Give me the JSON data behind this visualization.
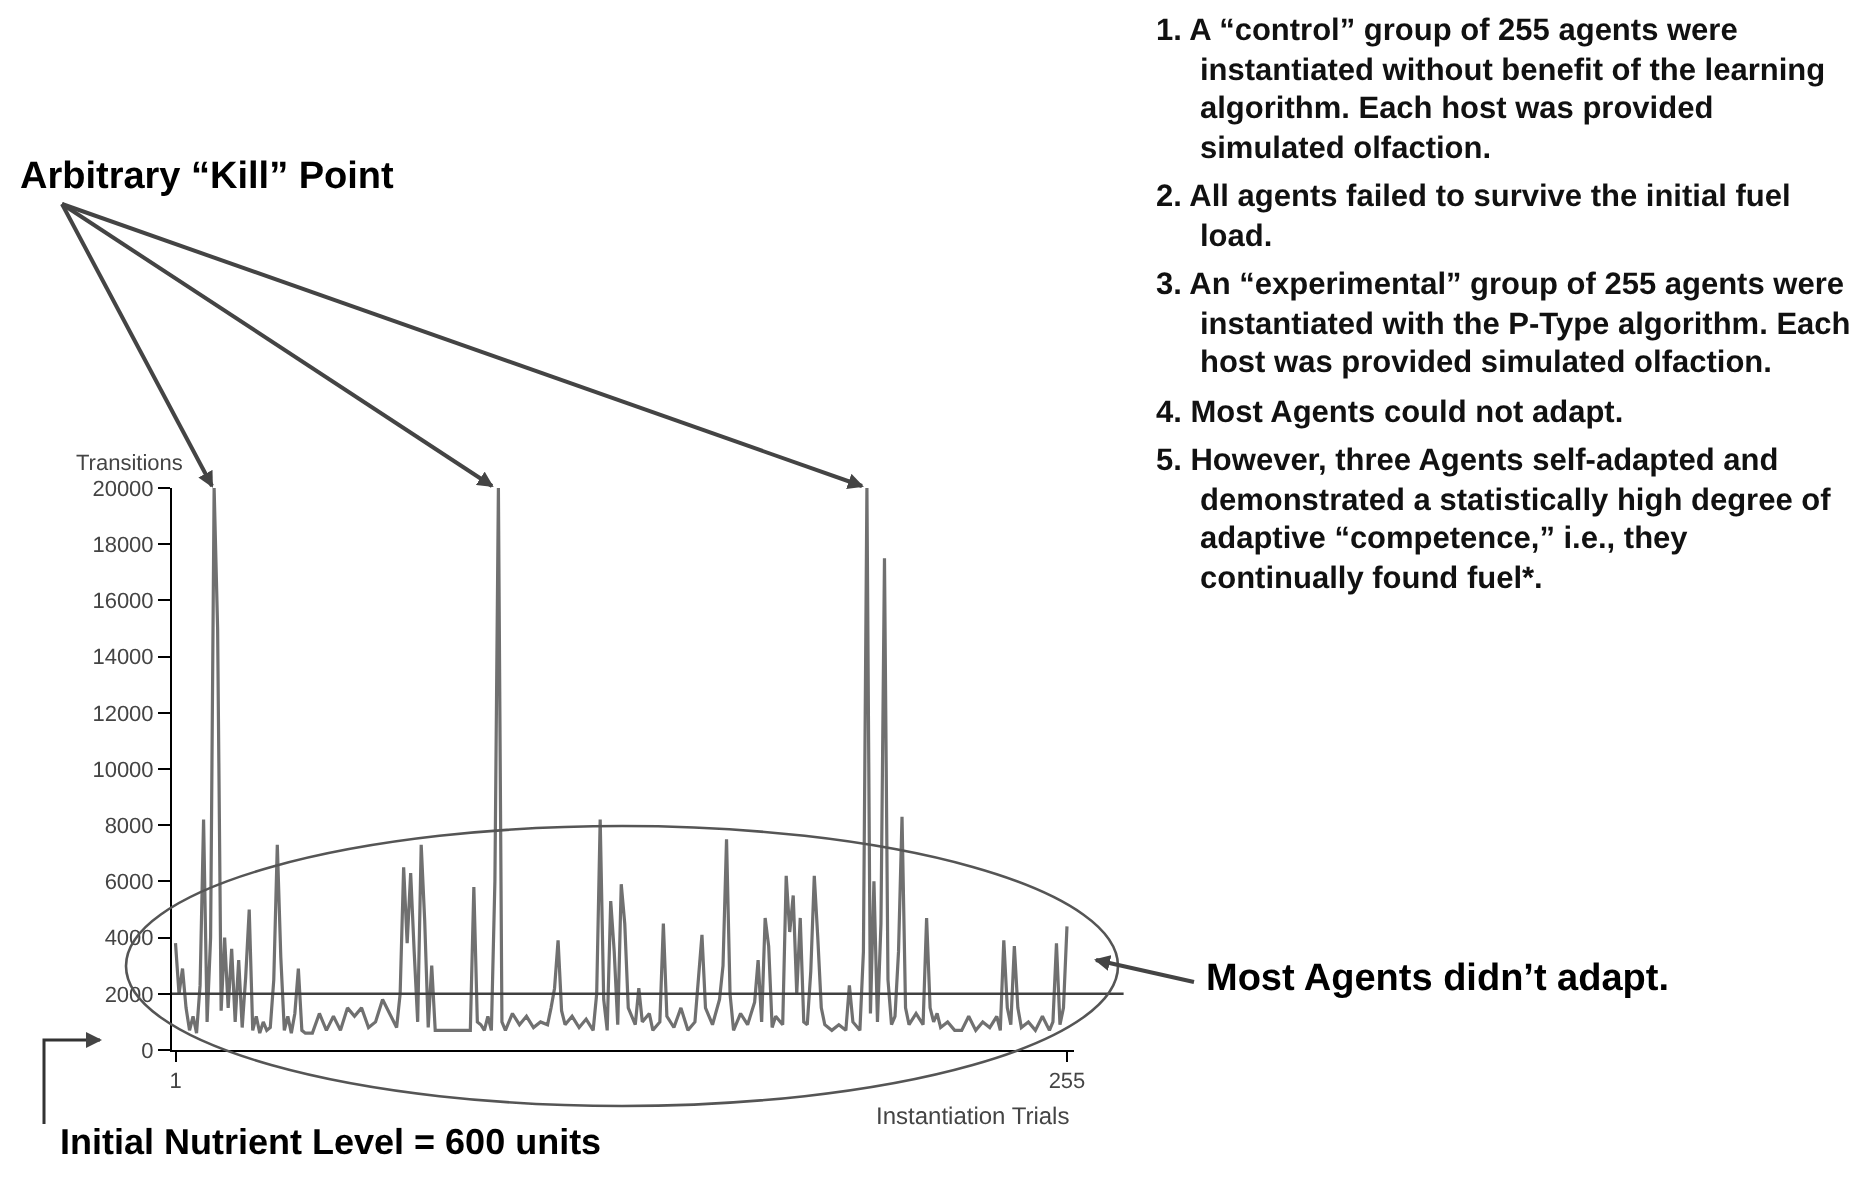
{
  "chart_data": {
    "type": "line",
    "ylabel": "Transitions",
    "xlabel": "Instantiation Trials",
    "annotations": [
      "Arbitrary “Kill” Point",
      "Most Agents didn’t adapt.",
      "Initial Nutrient Level = 600 units",
      "1. A “control” group of 255 agents were instantiated without benefit of the learning algorithm.  Each host was provided simulated olfaction.",
      "2. All agents failed to survive the initial fuel load.",
      "3. An “experimental” group of 255 agents were instantiated with the P-Type algorithm. Each host was provided simulated olfaction.",
      "4. Most Agents could not adapt.",
      "5. However, three Agents self-adapted and demonstrated a statistically high degree of adaptive “competence,” i.e., they continually found fuel*."
    ],
    "x": [
      1,
      2,
      3,
      4,
      5,
      6,
      7,
      8,
      9,
      10,
      11,
      12,
      13,
      14,
      15,
      16,
      17,
      18,
      19,
      20,
      21,
      22,
      23,
      24,
      25,
      26,
      27,
      28,
      29,
      30,
      31,
      32,
      33,
      34,
      35,
      36,
      37,
      38,
      40,
      42,
      44,
      46,
      48,
      50,
      52,
      54,
      56,
      58,
      60,
      62,
      64,
      65,
      66,
      67,
      68,
      69,
      70,
      71,
      72,
      73,
      74,
      75,
      80,
      84,
      85,
      86,
      87,
      88,
      89,
      90,
      91,
      92,
      93,
      94,
      95,
      97,
      99,
      101,
      103,
      105,
      107,
      108,
      109,
      110,
      111,
      112,
      114,
      116,
      118,
      120,
      121,
      122,
      123,
      124,
      125,
      126,
      127,
      128,
      129,
      130,
      132,
      133,
      134,
      136,
      137,
      139,
      140,
      141,
      143,
      145,
      147,
      149,
      151,
      152,
      154,
      156,
      157,
      158,
      159,
      160,
      162,
      164,
      166,
      167,
      168,
      169,
      170,
      171,
      172,
      174,
      175,
      176,
      177,
      178,
      179,
      180,
      181,
      182,
      183,
      184,
      185,
      186,
      188,
      190,
      192,
      193,
      194,
      196,
      197,
      198,
      199,
      200,
      201,
      202,
      203,
      204,
      205,
      206,
      207,
      208,
      209,
      210,
      212,
      214,
      215,
      216,
      217,
      218,
      219,
      221,
      223,
      225,
      227,
      229,
      231,
      233,
      235,
      236,
      237,
      238,
      239,
      240,
      241,
      242,
      244,
      246,
      248,
      250,
      251,
      252,
      253,
      254,
      255
    ],
    "series": [
      {
        "color": "#707070",
        "values": [
          3800,
          2000,
          2900,
          1500,
          700,
          1200,
          600,
          2300,
          8200,
          1000,
          4000,
          20000,
          15000,
          1400,
          4000,
          1500,
          3600,
          1000,
          3200,
          800,
          2600,
          5000,
          700,
          1200,
          600,
          1000,
          700,
          800,
          2500,
          7300,
          3300,
          700,
          1200,
          600,
          1300,
          2900,
          700,
          600,
          600,
          1300,
          700,
          1200,
          700,
          1500,
          1200,
          1500,
          800,
          1000,
          1800,
          1300,
          800,
          2000,
          6500,
          3800,
          6300,
          3500,
          1000,
          7300,
          4600,
          800,
          3000,
          700,
          700,
          700,
          700,
          5800,
          1000,
          900,
          700,
          1200,
          700,
          6000,
          20000,
          1000,
          700,
          1300,
          900,
          1200,
          800,
          1000,
          900,
          1500,
          2200,
          3900,
          1400,
          900,
          1200,
          800,
          1100,
          700,
          2000,
          8200,
          1800,
          700,
          5300,
          3500,
          900,
          5900,
          4500,
          1500,
          900,
          2200,
          1000,
          1300,
          700,
          1000,
          4500,
          1200,
          800,
          1500,
          700,
          1000,
          4100,
          1500,
          900,
          1800,
          3000,
          7500,
          2000,
          700,
          1300,
          900,
          1700,
          3200,
          1000,
          4700,
          3700,
          800,
          1200,
          900,
          6200,
          4200,
          5500,
          2000,
          4700,
          1000,
          900,
          2800,
          6200,
          4000,
          1500,
          900,
          700,
          900,
          700,
          2300,
          1000,
          700,
          3500,
          20000,
          1300,
          6000,
          1000,
          4500,
          17500,
          2500,
          900,
          1200,
          3500,
          8300,
          1500,
          900,
          1300,
          900,
          4700,
          1500,
          1000,
          1300,
          800,
          1000,
          700,
          700,
          1200,
          700,
          1000,
          800,
          1200,
          700,
          3900,
          1500,
          900,
          3700,
          1500,
          800,
          1000,
          700,
          1200,
          700,
          1000,
          3800,
          900,
          1500,
          4400
        ]
      }
    ],
    "xlim": [
      0,
      257
    ],
    "xticks": [
      1,
      255
    ],
    "ylim": [
      0,
      20000
    ],
    "yticks": [
      0,
      2000,
      4000,
      6000,
      8000,
      10000,
      12000,
      14000,
      16000,
      18000,
      20000
    ],
    "ref_lines": [
      {
        "axis": "y",
        "value": 2000,
        "color": "#404040"
      }
    ]
  }
}
